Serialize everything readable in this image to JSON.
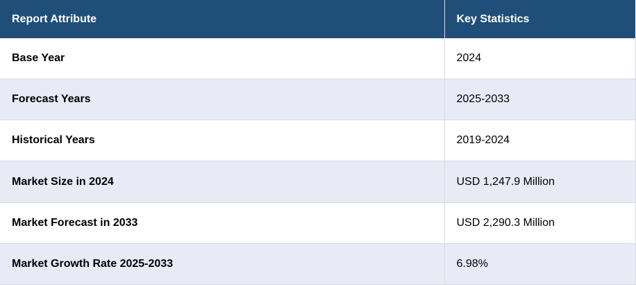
{
  "table": {
    "headers": [
      "Report Attribute",
      "Key Statistics"
    ],
    "rows": [
      {
        "attribute": "Base Year",
        "value": "2024"
      },
      {
        "attribute": "Forecast Years",
        "value": "2025-2033"
      },
      {
        "attribute": "Historical Years",
        "value": "2019-2024"
      },
      {
        "attribute": "Market Size in 2024",
        "value": "USD 1,247.9 Million"
      },
      {
        "attribute": "Market Forecast in 2033",
        "value": "USD 2,290.3 Million"
      },
      {
        "attribute": "Market Growth Rate 2025-2033",
        "value": "6.98%"
      }
    ]
  },
  "colors": {
    "header_bg": "#1f4e79",
    "header_text": "#ffffff",
    "row_alt_bg": "#e8eaf6",
    "row_bg": "#ffffff",
    "border": "#d9d9e3"
  }
}
